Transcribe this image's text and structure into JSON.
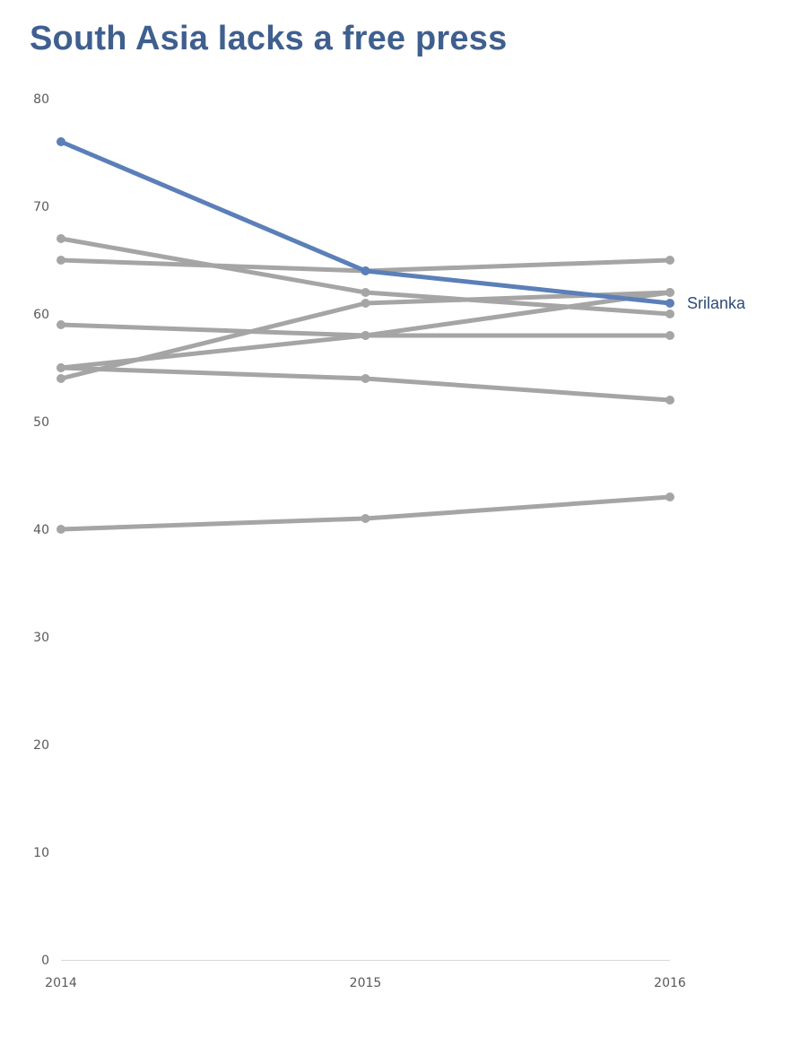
{
  "chart_data": {
    "type": "line",
    "title": "South Asia lacks a free press",
    "xlabel": "",
    "ylabel": "",
    "x": [
      "2014",
      "2015",
      "2016"
    ],
    "ylim": [
      0,
      80
    ],
    "yticks": [
      0,
      10,
      20,
      30,
      40,
      50,
      60,
      70,
      80
    ],
    "grid": false,
    "legend": "none",
    "colors": {
      "highlight": "#5b7fb8",
      "highlight_label": "#2e4b78",
      "others": "#a5a5a5",
      "title": "#3f5f8f",
      "axis": "#d9d9d9"
    },
    "series": [
      {
        "name": "Srilanka",
        "values": [
          76,
          64,
          61
        ],
        "highlight": true
      },
      {
        "values": [
          67,
          62,
          60
        ],
        "highlight": false
      },
      {
        "values": [
          65,
          64,
          65
        ],
        "highlight": false
      },
      {
        "values": [
          59,
          58,
          58
        ],
        "highlight": false
      },
      {
        "values": [
          55,
          58,
          62
        ],
        "highlight": false
      },
      {
        "values": [
          54,
          61,
          62
        ],
        "highlight": false
      },
      {
        "values": [
          55,
          54,
          52
        ],
        "highlight": false
      },
      {
        "values": [
          40,
          41,
          43
        ],
        "highlight": false
      }
    ]
  }
}
